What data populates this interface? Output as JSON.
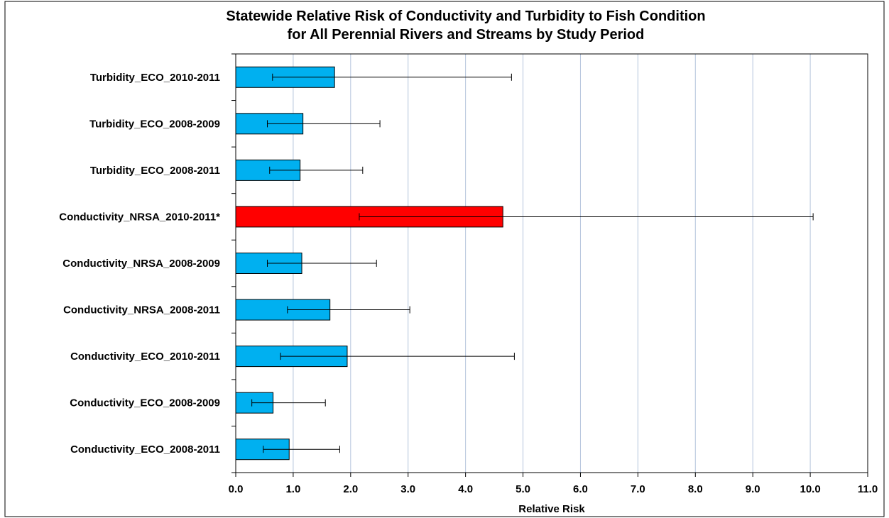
{
  "chart_data": {
    "type": "bar",
    "orientation": "horizontal",
    "title": "Statewide Relative Risk of Conductivity and Turbidity to Fish Condition",
    "subtitle": "for All Perennial Rivers and Streams by Study Period",
    "xlabel": "Relative Risk",
    "ylabel": "",
    "xlim": [
      0,
      11
    ],
    "x_ticks": [
      "0.0",
      "1.0",
      "2.0",
      "3.0",
      "4.0",
      "5.0",
      "6.0",
      "7.0",
      "8.0",
      "9.0",
      "10.0",
      "11.0"
    ],
    "grid": "vertical",
    "legend": "none",
    "colors": {
      "default": "#00b0f0",
      "highlight": "#ff0000",
      "grid": "#b4c4dc",
      "error_bar": "#000000"
    },
    "categories": [
      "Turbidity_ECO_2010-2011",
      "Turbidity_ECO_2008-2009",
      "Turbidity_ECO_2008-2011",
      "Conductivity_NRSA_2010-2011*",
      "Conductivity_NRSA_2008-2009",
      "Conductivity_NRSA_2008-2011",
      "Conductivity_ECO_2010-2011",
      "Conductivity_ECO_2008-2009",
      "Conductivity_ECO_2008-2011"
    ],
    "values": [
      1.72,
      1.17,
      1.12,
      4.65,
      1.15,
      1.64,
      1.94,
      0.65,
      0.93
    ],
    "error_low": [
      0.64,
      0.55,
      0.59,
      2.15,
      0.55,
      0.9,
      0.78,
      0.28,
      0.48
    ],
    "error_high": [
      4.8,
      2.51,
      2.21,
      10.05,
      2.45,
      3.03,
      4.85,
      1.56,
      1.81
    ],
    "highlight": [
      false,
      false,
      false,
      true,
      false,
      false,
      false,
      false,
      false
    ]
  }
}
